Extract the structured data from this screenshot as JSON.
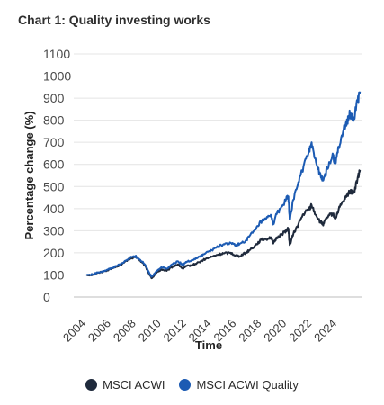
{
  "chart_data": {
    "type": "line",
    "title": "Chart 1: Quality investing works",
    "xlabel": "Time",
    "ylabel": "Percentage change (%)",
    "ylim": [
      0,
      1100
    ],
    "xlim": [
      2003,
      2026
    ],
    "yticks": [
      "0",
      "100",
      "200",
      "300",
      "400",
      "500",
      "600",
      "700",
      "800",
      "900",
      "1000",
      "1100"
    ],
    "xticks": [
      "2004",
      "2006",
      "2008",
      "2010",
      "2012",
      "2014",
      "2016",
      "2018",
      "2020",
      "2022",
      "2024"
    ],
    "grid": true,
    "legend_position": "bottom",
    "series": [
      {
        "name": "MSCI ACWI",
        "color": "#1f2a3c",
        "points": [
          [
            2004.0,
            100
          ],
          [
            2004.5,
            100
          ],
          [
            2005.0,
            110
          ],
          [
            2005.5,
            118
          ],
          [
            2006.0,
            128
          ],
          [
            2006.5,
            140
          ],
          [
            2007.0,
            155
          ],
          [
            2007.5,
            175
          ],
          [
            2007.9,
            182
          ],
          [
            2008.3,
            165
          ],
          [
            2008.7,
            140
          ],
          [
            2009.0,
            105
          ],
          [
            2009.2,
            85
          ],
          [
            2009.6,
            110
          ],
          [
            2010.0,
            125
          ],
          [
            2010.4,
            118
          ],
          [
            2010.9,
            138
          ],
          [
            2011.3,
            148
          ],
          [
            2011.7,
            128
          ],
          [
            2012.0,
            140
          ],
          [
            2012.5,
            145
          ],
          [
            2013.0,
            158
          ],
          [
            2013.5,
            172
          ],
          [
            2014.0,
            182
          ],
          [
            2014.5,
            192
          ],
          [
            2015.0,
            198
          ],
          [
            2015.5,
            200
          ],
          [
            2015.9,
            188
          ],
          [
            2016.2,
            185
          ],
          [
            2016.7,
            200
          ],
          [
            2017.0,
            212
          ],
          [
            2017.5,
            235
          ],
          [
            2017.9,
            258
          ],
          [
            2018.3,
            262
          ],
          [
            2018.7,
            270
          ],
          [
            2018.9,
            242
          ],
          [
            2019.2,
            270
          ],
          [
            2019.6,
            285
          ],
          [
            2019.9,
            300
          ],
          [
            2020.1,
            310
          ],
          [
            2020.2,
            235
          ],
          [
            2020.5,
            285
          ],
          [
            2020.9,
            330
          ],
          [
            2021.3,
            375
          ],
          [
            2021.7,
            395
          ],
          [
            2021.95,
            415
          ],
          [
            2022.3,
            370
          ],
          [
            2022.7,
            335
          ],
          [
            2022.9,
            330
          ],
          [
            2023.2,
            360
          ],
          [
            2023.6,
            378
          ],
          [
            2023.85,
            355
          ],
          [
            2024.1,
            395
          ],
          [
            2024.5,
            435
          ],
          [
            2024.8,
            460
          ],
          [
            2025.0,
            480
          ],
          [
            2025.3,
            470
          ],
          [
            2025.6,
            530
          ],
          [
            2025.8,
            575
          ]
        ]
      },
      {
        "name": "MSCI ACWI Quality",
        "color": "#1c5bb3",
        "points": [
          [
            2004.0,
            100
          ],
          [
            2004.5,
            102
          ],
          [
            2005.0,
            112
          ],
          [
            2005.5,
            120
          ],
          [
            2006.0,
            130
          ],
          [
            2006.5,
            142
          ],
          [
            2007.0,
            158
          ],
          [
            2007.5,
            178
          ],
          [
            2007.9,
            185
          ],
          [
            2008.3,
            168
          ],
          [
            2008.7,
            145
          ],
          [
            2009.0,
            112
          ],
          [
            2009.2,
            92
          ],
          [
            2009.6,
            118
          ],
          [
            2010.0,
            135
          ],
          [
            2010.4,
            128
          ],
          [
            2010.9,
            150
          ],
          [
            2011.3,
            162
          ],
          [
            2011.7,
            145
          ],
          [
            2012.0,
            160
          ],
          [
            2012.5,
            168
          ],
          [
            2013.0,
            182
          ],
          [
            2013.5,
            198
          ],
          [
            2014.0,
            212
          ],
          [
            2014.5,
            228
          ],
          [
            2015.0,
            238
          ],
          [
            2015.5,
            245
          ],
          [
            2015.9,
            232
          ],
          [
            2016.2,
            240
          ],
          [
            2016.7,
            255
          ],
          [
            2017.0,
            275
          ],
          [
            2017.5,
            305
          ],
          [
            2017.9,
            340
          ],
          [
            2018.3,
            350
          ],
          [
            2018.7,
            372
          ],
          [
            2018.9,
            330
          ],
          [
            2019.2,
            380
          ],
          [
            2019.6,
            410
          ],
          [
            2019.9,
            440
          ],
          [
            2020.1,
            455
          ],
          [
            2020.2,
            350
          ],
          [
            2020.5,
            440
          ],
          [
            2020.9,
            520
          ],
          [
            2021.3,
            590
          ],
          [
            2021.7,
            650
          ],
          [
            2021.95,
            700
          ],
          [
            2022.3,
            610
          ],
          [
            2022.7,
            540
          ],
          [
            2022.9,
            530
          ],
          [
            2023.2,
            580
          ],
          [
            2023.6,
            640
          ],
          [
            2023.85,
            610
          ],
          [
            2024.1,
            680
          ],
          [
            2024.5,
            760
          ],
          [
            2024.8,
            800
          ],
          [
            2025.0,
            830
          ],
          [
            2025.3,
            800
          ],
          [
            2025.6,
            880
          ],
          [
            2025.8,
            930
          ]
        ]
      }
    ]
  }
}
